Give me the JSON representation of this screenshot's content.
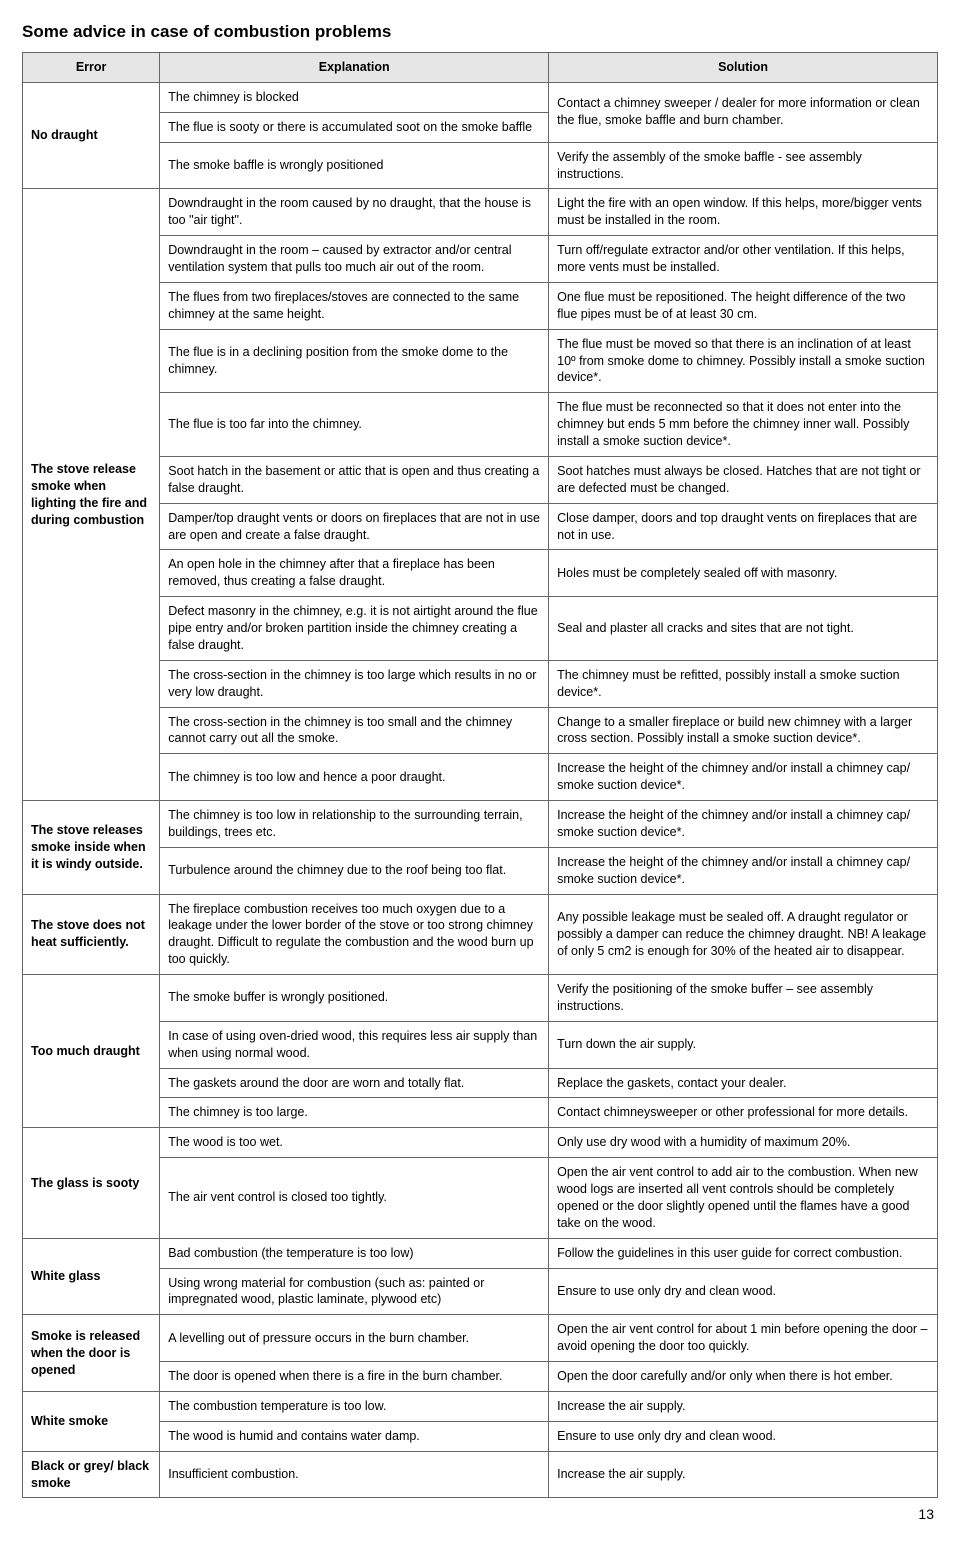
{
  "title": "Some advice in case of combustion problems",
  "headers": {
    "error": "Error",
    "explanation": "Explanation",
    "solution": "Solution"
  },
  "page_number": "13",
  "rows": [
    {
      "error": "No draught",
      "error_rowspan": 3,
      "explanation": "The chimney is blocked",
      "solution": "Contact a chimney sweeper / dealer for more information or clean the flue, smoke baffle and burn chamber.",
      "solution_rowspan": 2
    },
    {
      "explanation": "The flue is sooty or there is accumulated soot on the smoke baffle"
    },
    {
      "explanation": "The smoke baffle is wrongly positioned",
      "solution": "Verify the assembly of the smoke baffle - see assembly instructions."
    },
    {
      "error": "The stove release smoke when lighting the fire and during combustion",
      "error_rowspan": 12,
      "explanation": "Downdraught in the room caused by no draught, that the house is too \"air tight\".",
      "solution": "Light the fire with an open window. If this helps, more/bigger vents must be installed in the room."
    },
    {
      "explanation": "Downdraught in the room – caused by extractor and/or central ventilation system that pulls too much air out of the room.",
      "solution": "Turn off/regulate extractor and/or other ventilation. If this helps, more vents must be installed."
    },
    {
      "explanation": "The flues from two fireplaces/stoves are connected to the same chimney at the same height.",
      "solution": "One flue must be repositioned. The height difference of the two flue pipes must be of at least 30 cm."
    },
    {
      "explanation": "The flue is in a declining position from the smoke dome to the chimney.",
      "solution": "The flue must be moved so that there is an inclination of at least 10º from smoke dome to chimney. Possibly install a smoke suction device*."
    },
    {
      "explanation": "The flue is too far into the chimney.",
      "solution": "The flue must be reconnected so that it does not enter into the chimney but ends 5 mm before the chimney inner wall. Possibly install a smoke suction device*."
    },
    {
      "explanation": "Soot hatch in the basement or attic that is open and thus creating a false draught.",
      "solution": "Soot hatches must always be closed. Hatches that are not tight or are defected must be changed."
    },
    {
      "explanation": "Damper/top draught vents or doors on fireplaces that are not in use are open and create a false draught.",
      "solution": "Close damper, doors and top draught vents on fireplaces that are not in use."
    },
    {
      "explanation": "An open hole in the chimney after that a fireplace has been removed, thus creating a false draught.",
      "solution": "Holes must be completely sealed off with masonry."
    },
    {
      "explanation": "Defect masonry in the chimney, e.g. it is not airtight around the flue pipe entry and/or broken partition inside the chimney creating a false draught.",
      "solution": "Seal and plaster all cracks and sites that are not tight."
    },
    {
      "explanation": "The cross-section in the chimney is too large which results in no or very low draught.",
      "solution": "The chimney must be refitted, possibly install a smoke suction device*."
    },
    {
      "explanation": "The cross-section in the chimney is too small and the chimney cannot carry out all the smoke.",
      "solution": "Change to a smaller fireplace or build new chimney with a larger cross section. Possibly install a smoke suction device*."
    },
    {
      "explanation": "The chimney is too low and hence a poor draught.",
      "solution": "Increase the height of the chimney and/or install a chimney cap/ smoke suction device*."
    },
    {
      "error": "The stove releases smoke inside when it is windy outside.",
      "error_rowspan": 2,
      "explanation": "The chimney is too low in relationship to the surrounding terrain, buildings, trees etc.",
      "solution": "Increase the height of the chimney and/or install a chimney cap/ smoke suction device*."
    },
    {
      "explanation": "Turbulence around the chimney due to the roof being too flat.",
      "solution": "Increase the height of the chimney and/or install a chimney cap/ smoke suction device*."
    },
    {
      "error": "The stove does not heat sufficiently.",
      "error_rowspan": 1,
      "explanation": "The fireplace combustion receives too much oxygen due to a leakage under the lower border of the stove or too strong chimney draught. Difficult to regulate the combustion and the wood burn up too quickly.",
      "solution": "Any possible leakage must be sealed off. A draught regulator or possibly a damper can reduce the chimney draught. NB! A leakage of only 5 cm2 is enough for 30% of the heated air to disappear."
    },
    {
      "error": "Too much draught",
      "error_rowspan": 4,
      "explanation": "The smoke buffer is wrongly positioned.",
      "solution": "Verify the positioning of the smoke buffer – see assembly instructions."
    },
    {
      "explanation": "In case of using oven-dried wood, this requires less air supply than when using normal wood.",
      "solution": "Turn down the air supply."
    },
    {
      "explanation": "The gaskets around the door are worn and totally flat.",
      "solution": "Replace the gaskets, contact your dealer."
    },
    {
      "explanation": "The chimney is too large.",
      "solution": "Contact chimneysweeper or other professional for more details."
    },
    {
      "error": "The glass is sooty",
      "error_rowspan": 2,
      "explanation": "The wood is too wet.",
      "solution": "Only use dry wood with a humidity of maximum 20%."
    },
    {
      "explanation": "The air vent control is closed too tightly.",
      "solution": "Open the air vent control to add air to the combustion. When new wood logs are inserted all vent controls should be completely opened or the door slightly opened until the flames have a good take on the wood."
    },
    {
      "error": "White glass",
      "error_rowspan": 2,
      "explanation": "Bad combustion (the temperature is too low)",
      "solution": "Follow the guidelines in this user guide for correct combustion."
    },
    {
      "explanation": "Using wrong material for combustion (such as: painted or impregnated wood, plastic laminate, plywood etc)",
      "solution": "Ensure to use only dry and clean wood."
    },
    {
      "error": "Smoke is released when the door is opened",
      "error_rowspan": 2,
      "explanation": "A levelling out of pressure occurs in the burn chamber.",
      "solution": "Open the air vent control for about 1 min before opening the door – avoid opening the door too quickly."
    },
    {
      "explanation": "The door is opened when there is a fire in the burn chamber.",
      "solution": "Open the door carefully and/or only when there is hot ember."
    },
    {
      "error": "White smoke",
      "error_rowspan": 2,
      "explanation": "The combustion temperature is too low.",
      "solution": "Increase the air supply."
    },
    {
      "explanation": "The wood is humid and contains water damp.",
      "solution": "Ensure to use only dry and clean wood."
    },
    {
      "error": "Black or grey/ black smoke",
      "error_rowspan": 1,
      "explanation": "Insufficient combustion.",
      "solution": "Increase the air supply."
    }
  ]
}
